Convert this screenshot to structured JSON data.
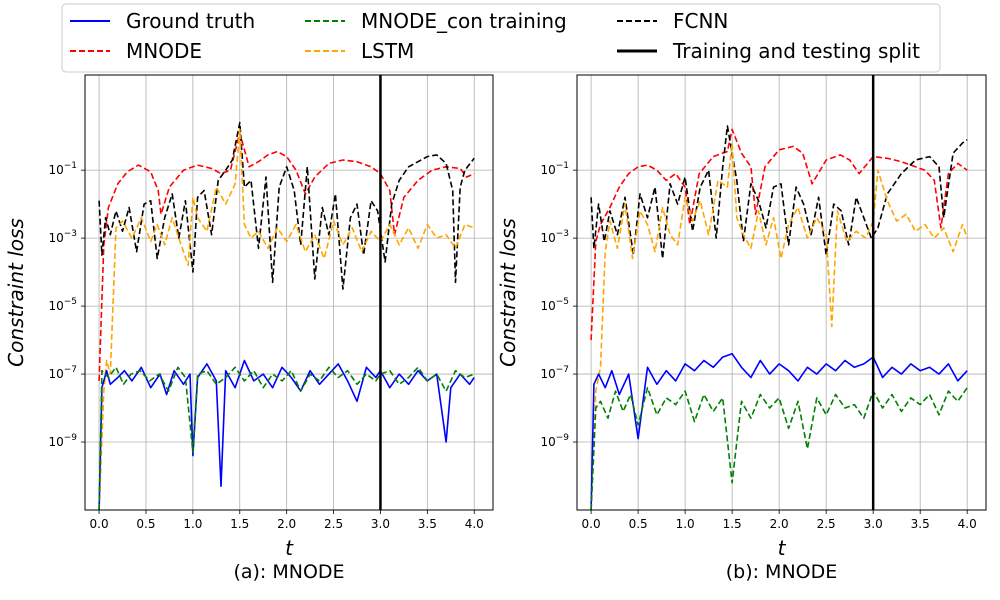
{
  "legend": [
    {
      "label": "Ground truth",
      "color": "#0000ff",
      "style": "solid"
    },
    {
      "label": "MNODE",
      "color": "#ff0000",
      "style": "dashed"
    },
    {
      "label": "MNODE_con training",
      "color": "#008000",
      "style": "dashed"
    },
    {
      "label": "LSTM",
      "color": "#ffa500",
      "style": "dashed"
    },
    {
      "label": "FCNN",
      "color": "#000000",
      "style": "dashed"
    },
    {
      "label": "Training and testing split",
      "color": "#000000",
      "style": "solid-thick"
    }
  ],
  "chart_data": [
    {
      "type": "line",
      "caption": "(a): MNODE",
      "xlabel": "t",
      "ylabel": "Constraint loss",
      "yscale": "log",
      "xlim": [
        -0.15,
        4.2
      ],
      "ylim_exp": [
        -11,
        1.8
      ],
      "xticks": [
        "0.0",
        "0.5",
        "1.0",
        "1.5",
        "2.0",
        "2.5",
        "3.0",
        "3.5",
        "4.0"
      ],
      "yticks_exp": [
        -1,
        -3,
        -5,
        -7,
        -9
      ],
      "grid": true,
      "split_x": 3.0,
      "series": [
        {
          "name": "MNODE",
          "color": "#ff0000",
          "dash": "6,3",
          "x": [
            0,
            0.05,
            0.1,
            0.2,
            0.3,
            0.42,
            0.55,
            0.63,
            0.66,
            0.75,
            0.9,
            1.05,
            1.2,
            1.3,
            1.4,
            1.5,
            1.6,
            1.7,
            1.8,
            1.9,
            2.0,
            2.1,
            2.2,
            2.3,
            2.45,
            2.6,
            2.75,
            2.9,
            3.0,
            3.1,
            3.15,
            3.25,
            3.4,
            3.55,
            3.7,
            3.85,
            3.92,
            4.0
          ],
          "y_exp": [
            -7.2,
            -3.2,
            -2.1,
            -1.4,
            -1.05,
            -0.85,
            -1.05,
            -1.6,
            -2.3,
            -1.5,
            -1.0,
            -0.85,
            -0.95,
            -1.1,
            -1.0,
            0.1,
            -0.9,
            -0.75,
            -0.55,
            -0.45,
            -0.6,
            -1.0,
            -1.7,
            -1.2,
            -0.8,
            -0.7,
            -0.75,
            -0.9,
            -1.1,
            -1.6,
            -2.9,
            -1.8,
            -1.3,
            -1.0,
            -0.9,
            -0.95,
            -1.2,
            -1.1
          ]
        },
        {
          "name": "FCNN",
          "color": "#000000",
          "dash": "6,3",
          "x": [
            0,
            0.03,
            0.07,
            0.12,
            0.18,
            0.25,
            0.32,
            0.4,
            0.48,
            0.55,
            0.62,
            0.7,
            0.78,
            0.85,
            0.92,
            1.0,
            1.05,
            1.12,
            1.2,
            1.27,
            1.35,
            1.42,
            1.5,
            1.55,
            1.62,
            1.7,
            1.78,
            1.85,
            1.92,
            2.0,
            2.08,
            2.15,
            2.22,
            2.3,
            2.38,
            2.45,
            2.52,
            2.6,
            2.68,
            2.75,
            2.82,
            2.9,
            2.97,
            3.05,
            3.12,
            3.2,
            3.3,
            3.4,
            3.5,
            3.6,
            3.7,
            3.77,
            3.8,
            3.85,
            3.9,
            4.0
          ],
          "y_exp": [
            -1.9,
            -3.5,
            -2.4,
            -2.9,
            -2.2,
            -2.8,
            -2.1,
            -3.4,
            -2.0,
            -1.9,
            -3.6,
            -2.4,
            -1.7,
            -3.0,
            -1.9,
            -4.0,
            -1.8,
            -1.6,
            -2.9,
            -1.3,
            -1.0,
            -0.7,
            0.4,
            -1.5,
            -1.3,
            -3.3,
            -1.2,
            -4.3,
            -1.5,
            -0.9,
            -1.6,
            -3.2,
            -0.9,
            -4.2,
            -2.1,
            -2.9,
            -1.7,
            -4.5,
            -2.4,
            -2.0,
            -3.5,
            -1.9,
            -2.2,
            -3.7,
            -2.0,
            -1.3,
            -0.9,
            -0.75,
            -0.6,
            -0.55,
            -0.8,
            -1.6,
            -4.3,
            -1.5,
            -1.0,
            -0.65
          ]
        },
        {
          "name": "LSTM",
          "color": "#ffa500",
          "dash": "6,3",
          "x": [
            0,
            0.05,
            0.08,
            0.12,
            0.18,
            0.25,
            0.35,
            0.45,
            0.55,
            0.62,
            0.7,
            0.78,
            0.85,
            0.95,
            1.0,
            1.05,
            1.15,
            1.25,
            1.35,
            1.45,
            1.5,
            1.55,
            1.62,
            1.7,
            1.8,
            1.9,
            2.0,
            2.1,
            2.2,
            2.3,
            2.4,
            2.5,
            2.6,
            2.7,
            2.8,
            2.9,
            3.0,
            3.1,
            3.2,
            3.3,
            3.4,
            3.5,
            3.6,
            3.7,
            3.8,
            3.9,
            4.0
          ],
          "y_exp": [
            -11,
            -7.5,
            -6.6,
            -7.0,
            -2.7,
            -2.5,
            -3.0,
            -2.4,
            -3.1,
            -2.6,
            -3.2,
            -2.4,
            -3.0,
            -3.8,
            -1.8,
            -2.4,
            -2.8,
            -1.5,
            -2.0,
            -1.4,
            0.2,
            -2.6,
            -3.0,
            -2.8,
            -3.3,
            -2.7,
            -3.1,
            -2.6,
            -3.4,
            -2.9,
            -3.6,
            -2.5,
            -3.2,
            -2.7,
            -3.4,
            -2.8,
            -3.1,
            -2.6,
            -3.2,
            -2.7,
            -3.3,
            -2.6,
            -3.0,
            -2.9,
            -3.3,
            -2.6,
            -2.7
          ]
        },
        {
          "name": "Ground truth",
          "color": "#0000ff",
          "dash": "",
          "x": [
            0,
            0.03,
            0.08,
            0.12,
            0.2,
            0.27,
            0.35,
            0.45,
            0.55,
            0.65,
            0.72,
            0.8,
            0.9,
            0.97,
            1.0,
            1.05,
            1.15,
            1.25,
            1.3,
            1.35,
            1.45,
            1.55,
            1.65,
            1.75,
            1.85,
            1.95,
            2.05,
            2.15,
            2.25,
            2.35,
            2.45,
            2.55,
            2.65,
            2.75,
            2.85,
            2.95,
            3.0,
            3.1,
            3.2,
            3.3,
            3.4,
            3.5,
            3.6,
            3.7,
            3.75,
            3.85,
            3.95,
            4.0
          ],
          "y_exp": [
            -11,
            -7.4,
            -6.9,
            -7.3,
            -7.1,
            -6.9,
            -7.2,
            -6.8,
            -7.4,
            -7.0,
            -7.6,
            -6.9,
            -7.3,
            -7.0,
            -9.4,
            -7.1,
            -6.7,
            -7.2,
            -10.3,
            -6.9,
            -7.4,
            -6.6,
            -7.2,
            -7.0,
            -7.4,
            -6.8,
            -7.1,
            -7.5,
            -6.9,
            -7.3,
            -7.0,
            -6.7,
            -7.2,
            -7.8,
            -6.8,
            -7.1,
            -6.9,
            -7.4,
            -7.0,
            -7.3,
            -6.9,
            -7.2,
            -7.0,
            -9.0,
            -7.4,
            -7.0,
            -7.3,
            -7.1
          ]
        },
        {
          "name": "MNODE_con training",
          "color": "#008000",
          "dash": "6,3",
          "x": [
            0,
            0.03,
            0.1,
            0.18,
            0.26,
            0.34,
            0.44,
            0.54,
            0.64,
            0.74,
            0.84,
            0.92,
            1.0,
            1.05,
            1.15,
            1.25,
            1.35,
            1.45,
            1.55,
            1.65,
            1.75,
            1.85,
            1.95,
            2.05,
            2.15,
            2.25,
            2.35,
            2.45,
            2.55,
            2.65,
            2.75,
            2.85,
            2.95,
            3.0,
            3.1,
            3.2,
            3.3,
            3.4,
            3.5,
            3.6,
            3.7,
            3.8,
            3.9,
            4.0
          ],
          "y_exp": [
            -11,
            -6.9,
            -7.1,
            -6.8,
            -7.3,
            -7.0,
            -6.9,
            -7.2,
            -7.0,
            -7.5,
            -6.8,
            -7.1,
            -9.3,
            -7.0,
            -6.9,
            -7.3,
            -7.1,
            -6.8,
            -7.2,
            -6.9,
            -7.4,
            -7.0,
            -7.2,
            -6.9,
            -7.5,
            -7.0,
            -7.2,
            -6.8,
            -7.1,
            -6.9,
            -7.3,
            -7.0,
            -7.2,
            -7.0,
            -6.9,
            -7.3,
            -7.1,
            -6.8,
            -7.2,
            -7.0,
            -7.5,
            -6.9,
            -7.1,
            -7.0
          ]
        }
      ]
    },
    {
      "type": "line",
      "caption": "(b): MNODE",
      "xlabel": "t",
      "ylabel": "Constraint loss",
      "yscale": "log",
      "xlim": [
        -0.15,
        4.2
      ],
      "ylim_exp": [
        -11,
        1.8
      ],
      "xticks": [
        "0.0",
        "0.5",
        "1.0",
        "1.5",
        "2.0",
        "2.5",
        "3.0",
        "3.5",
        "4.0"
      ],
      "yticks_exp": [
        -1,
        -3,
        -5,
        -7,
        -9
      ],
      "grid": true,
      "split_x": 3.0,
      "series": [
        {
          "name": "MNODE",
          "color": "#ff0000",
          "dash": "6,3",
          "x": [
            0,
            0.05,
            0.1,
            0.2,
            0.3,
            0.4,
            0.5,
            0.6,
            0.7,
            0.8,
            0.9,
            1.0,
            1.05,
            1.15,
            1.3,
            1.45,
            1.5,
            1.6,
            1.7,
            1.75,
            1.85,
            2.0,
            2.15,
            2.25,
            2.35,
            2.5,
            2.65,
            2.75,
            2.85,
            3.0,
            3.15,
            3.3,
            3.45,
            3.55,
            3.65,
            3.72,
            3.8,
            3.9,
            4.0
          ],
          "y_exp": [
            -6.0,
            -3.1,
            -2.6,
            -2.1,
            -1.5,
            -1.1,
            -0.9,
            -0.85,
            -1.0,
            -1.3,
            -1.1,
            -1.5,
            -2.6,
            -1.1,
            -0.6,
            -0.45,
            0.2,
            -0.5,
            -0.9,
            -2.3,
            -0.9,
            -0.4,
            -0.3,
            -0.5,
            -1.4,
            -0.7,
            -0.55,
            -0.7,
            -1.1,
            -0.6,
            -0.65,
            -0.75,
            -0.9,
            -1.0,
            -1.3,
            -2.7,
            -1.1,
            -0.8,
            -1.0
          ]
        },
        {
          "name": "FCNN",
          "color": "#000000",
          "dash": "6,3",
          "x": [
            0,
            0.03,
            0.08,
            0.14,
            0.2,
            0.28,
            0.36,
            0.45,
            0.52,
            0.6,
            0.68,
            0.76,
            0.84,
            0.92,
            1.0,
            1.08,
            1.16,
            1.25,
            1.33,
            1.4,
            1.45,
            1.5,
            1.55,
            1.62,
            1.7,
            1.78,
            1.86,
            1.94,
            2.02,
            2.1,
            2.18,
            2.26,
            2.34,
            2.42,
            2.5,
            2.58,
            2.66,
            2.74,
            2.82,
            2.9,
            2.98,
            3.05,
            3.15,
            3.3,
            3.45,
            3.6,
            3.7,
            3.75,
            3.85,
            3.95,
            4.0
          ],
          "y_exp": [
            -1.8,
            -3.3,
            -2.0,
            -3.1,
            -2.2,
            -2.9,
            -1.8,
            -3.5,
            -1.7,
            -2.4,
            -1.5,
            -3.6,
            -1.4,
            -2.0,
            -1.2,
            -2.8,
            -1.5,
            -1.0,
            -3.0,
            -0.9,
            0.3,
            -0.5,
            -1.3,
            -3.1,
            -1.4,
            -1.9,
            -2.7,
            -1.5,
            -1.4,
            -3.2,
            -1.5,
            -2.0,
            -2.9,
            -1.8,
            -3.5,
            -2.0,
            -2.2,
            -3.2,
            -1.8,
            -2.4,
            -3.0,
            -2.7,
            -1.7,
            -1.1,
            -0.7,
            -0.6,
            -0.9,
            -2.4,
            -0.5,
            -0.2,
            -0.1
          ]
        },
        {
          "name": "LSTM",
          "color": "#ffa500",
          "dash": "6,3",
          "x": [
            0,
            0.05,
            0.1,
            0.15,
            0.2,
            0.28,
            0.36,
            0.44,
            0.52,
            0.6,
            0.68,
            0.76,
            0.84,
            0.92,
            1.0,
            1.08,
            1.16,
            1.25,
            1.35,
            1.45,
            1.5,
            1.55,
            1.62,
            1.7,
            1.78,
            1.86,
            1.94,
            2.02,
            2.1,
            2.2,
            2.3,
            2.4,
            2.5,
            2.56,
            2.62,
            2.72,
            2.82,
            2.92,
            3.0,
            3.05,
            3.15,
            3.25,
            3.35,
            3.45,
            3.55,
            3.65,
            3.75,
            3.85,
            3.95,
            4.0
          ],
          "y_exp": [
            -11,
            -7.5,
            -6.8,
            -3.4,
            -2.5,
            -3.3,
            -2.0,
            -3.6,
            -2.2,
            -2.6,
            -3.4,
            -2.1,
            -2.9,
            -3.2,
            -1.8,
            -2.5,
            -1.9,
            -2.9,
            -1.3,
            -1.5,
            -0.2,
            -2.4,
            -2.9,
            -3.3,
            -2.2,
            -3.2,
            -2.4,
            -3.6,
            -2.6,
            -2.1,
            -3.0,
            -2.4,
            -2.9,
            -5.6,
            -2.2,
            -3.1,
            -2.8,
            -3.0,
            -2.5,
            -1.0,
            -1.9,
            -2.5,
            -2.3,
            -2.8,
            -2.6,
            -3.0,
            -2.7,
            -3.4,
            -2.6,
            -3.0
          ]
        },
        {
          "name": "Ground truth",
          "color": "#0000ff",
          "dash": "",
          "x": [
            0,
            0.03,
            0.08,
            0.15,
            0.22,
            0.3,
            0.4,
            0.5,
            0.6,
            0.7,
            0.8,
            0.9,
            1.0,
            1.1,
            1.2,
            1.3,
            1.4,
            1.5,
            1.6,
            1.7,
            1.8,
            1.9,
            2.0,
            2.1,
            2.2,
            2.3,
            2.4,
            2.5,
            2.6,
            2.7,
            2.8,
            2.9,
            3.0,
            3.1,
            3.2,
            3.3,
            3.4,
            3.5,
            3.6,
            3.7,
            3.8,
            3.9,
            4.0
          ],
          "y_exp": [
            -11,
            -7.3,
            -7.0,
            -7.4,
            -6.9,
            -7.6,
            -7.0,
            -8.9,
            -6.8,
            -7.3,
            -6.9,
            -7.2,
            -6.7,
            -6.9,
            -6.6,
            -6.8,
            -6.5,
            -6.4,
            -6.8,
            -7.1,
            -6.6,
            -7.0,
            -6.7,
            -6.9,
            -7.2,
            -6.8,
            -7.0,
            -6.7,
            -6.9,
            -6.6,
            -6.8,
            -6.7,
            -6.5,
            -7.1,
            -6.8,
            -7.0,
            -6.7,
            -6.9,
            -6.8,
            -7.0,
            -6.7,
            -7.2,
            -6.9
          ]
        },
        {
          "name": "MNODE_con training",
          "color": "#008000",
          "dash": "6,3",
          "x": [
            0,
            0.05,
            0.1,
            0.18,
            0.26,
            0.34,
            0.42,
            0.5,
            0.6,
            0.7,
            0.8,
            0.9,
            1.0,
            1.1,
            1.2,
            1.3,
            1.4,
            1.5,
            1.6,
            1.7,
            1.8,
            1.9,
            2.0,
            2.1,
            2.2,
            2.3,
            2.4,
            2.5,
            2.6,
            2.7,
            2.8,
            2.9,
            3.0,
            3.1,
            3.2,
            3.3,
            3.4,
            3.5,
            3.6,
            3.7,
            3.8,
            3.9,
            4.0
          ],
          "y_exp": [
            -11,
            -8.0,
            -7.8,
            -8.3,
            -7.5,
            -8.1,
            -7.6,
            -8.5,
            -7.4,
            -8.2,
            -7.7,
            -7.9,
            -7.5,
            -8.4,
            -7.6,
            -8.1,
            -7.7,
            -10.2,
            -7.8,
            -8.3,
            -7.6,
            -8.0,
            -7.7,
            -8.6,
            -7.8,
            -9.2,
            -7.7,
            -8.2,
            -7.6,
            -8.0,
            -7.9,
            -8.3,
            -7.5,
            -8.0,
            -7.6,
            -8.1,
            -7.7,
            -7.9,
            -7.6,
            -8.2,
            -7.5,
            -7.8,
            -7.4
          ]
        }
      ]
    }
  ]
}
